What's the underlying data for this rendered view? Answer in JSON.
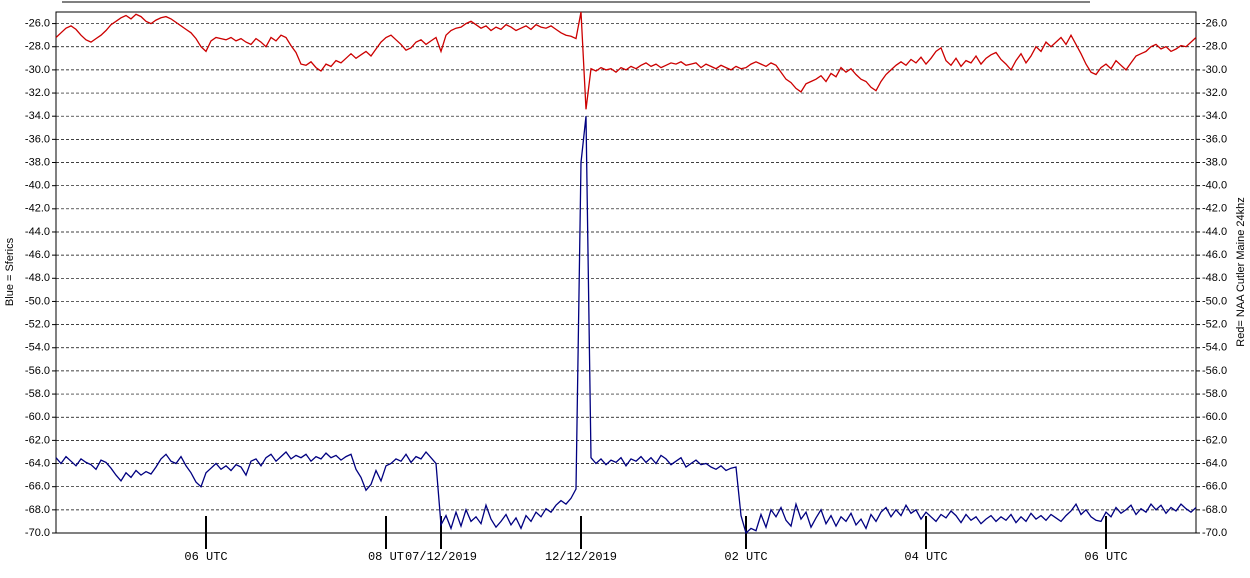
{
  "chart_data": {
    "type": "line",
    "y_label": "Blue = Sferics",
    "y2_label": "Red= NAA Cutler Maine 24khz",
    "xlim": [
      0,
      228
    ],
    "xticks": [
      {
        "value": 30,
        "label": "06 UTC"
      },
      {
        "value": 66,
        "label": "08 UT"
      },
      {
        "value": 77,
        "label": "07/12/2019"
      },
      {
        "value": 105,
        "label": "12/12/2019"
      },
      {
        "value": 138,
        "label": "02 UTC"
      },
      {
        "value": 174,
        "label": "04 UTC"
      },
      {
        "value": 210,
        "label": "06 UTC"
      }
    ],
    "ylim": [
      -70,
      -25
    ],
    "y2lim": [
      -70,
      -25
    ],
    "grid": true,
    "yticks": [
      {
        "value": -26,
        "label": "-26.0"
      },
      {
        "value": -28,
        "label": "-28.0"
      },
      {
        "value": -30,
        "label": "-30.0"
      },
      {
        "value": -32,
        "label": "-32.0"
      },
      {
        "value": -34,
        "label": "-34.0"
      },
      {
        "value": -36,
        "label": "-36.0"
      },
      {
        "value": -38,
        "label": "-38.0"
      },
      {
        "value": -40,
        "label": "-40.0"
      },
      {
        "value": -42,
        "label": "-42.0"
      },
      {
        "value": -44,
        "label": "-44.0"
      },
      {
        "value": -46,
        "label": "-46.0"
      },
      {
        "value": -48,
        "label": "-48.0"
      },
      {
        "value": -50,
        "label": "-50.0"
      },
      {
        "value": -52,
        "label": "-52.0"
      },
      {
        "value": -54,
        "label": "-54.0"
      },
      {
        "value": -56,
        "label": "-56.0"
      },
      {
        "value": -58,
        "label": "-58.0"
      },
      {
        "value": -60,
        "label": "-60.0"
      },
      {
        "value": -62,
        "label": "-62.0"
      },
      {
        "value": -64,
        "label": "-64.0"
      },
      {
        "value": -66,
        "label": "-66.0"
      },
      {
        "value": -68,
        "label": "-68.0"
      },
      {
        "value": -70,
        "label": "-70.0"
      }
    ],
    "y2ticks": [
      {
        "value": -26,
        "label": "-26.0"
      },
      {
        "value": -28,
        "label": "-28.0"
      },
      {
        "value": -30,
        "label": "-30.0"
      },
      {
        "value": -32,
        "label": "-32.0"
      },
      {
        "value": -34,
        "label": "-34.0"
      },
      {
        "value": -36,
        "label": "-36.0"
      },
      {
        "value": -38,
        "label": "-38.0"
      },
      {
        "value": -40,
        "label": "-40.0"
      },
      {
        "value": -42,
        "label": "-42.0"
      },
      {
        "value": -44,
        "label": "-44.0"
      },
      {
        "value": -46,
        "label": "-46.0"
      },
      {
        "value": -48,
        "label": "-48.0"
      },
      {
        "value": -50,
        "label": "-50.0"
      },
      {
        "value": -52,
        "label": "-52.0"
      },
      {
        "value": -54,
        "label": "-54.0"
      },
      {
        "value": -56,
        "label": "-56.0"
      },
      {
        "value": -58,
        "label": "-58.0"
      },
      {
        "value": -60,
        "label": "-60.0"
      },
      {
        "value": -62,
        "label": "-62.0"
      },
      {
        "value": -64,
        "label": "-64.0"
      },
      {
        "value": -66,
        "label": "-66.0"
      },
      {
        "value": -68,
        "label": "-68.0"
      },
      {
        "value": -70,
        "label": "-70.0"
      }
    ],
    "series": [
      {
        "color": "#cc0000",
        "axis": "y2",
        "values": [
          -27.2,
          -26.8,
          -26.4,
          -26.2,
          -26.5,
          -27.0,
          -27.4,
          -27.6,
          -27.3,
          -27.0,
          -26.6,
          -26.1,
          -25.8,
          -25.5,
          -25.3,
          -25.6,
          -25.2,
          -25.4,
          -25.8,
          -26.0,
          -25.7,
          -25.5,
          -25.4,
          -25.6,
          -25.9,
          -26.2,
          -26.5,
          -26.8,
          -27.3,
          -28.0,
          -28.4,
          -27.5,
          -27.2,
          -27.3,
          -27.4,
          -27.2,
          -27.5,
          -27.3,
          -27.6,
          -27.8,
          -27.3,
          -27.6,
          -28.0,
          -27.2,
          -27.5,
          -27.0,
          -27.2,
          -27.9,
          -28.5,
          -29.5,
          -29.6,
          -29.3,
          -29.8,
          -30.1,
          -29.5,
          -29.7,
          -29.2,
          -29.4,
          -29.0,
          -28.6,
          -29.0,
          -28.7,
          -28.4,
          -28.8,
          -28.2,
          -27.6,
          -27.2,
          -27.0,
          -27.4,
          -27.8,
          -28.3,
          -28.1,
          -27.6,
          -27.4,
          -27.8,
          -27.5,
          -27.2,
          -28.4,
          -27.0,
          -26.6,
          -26.4,
          -26.3,
          -26.0,
          -25.8,
          -26.1,
          -26.4,
          -26.2,
          -26.6,
          -26.3,
          -26.5,
          -26.1,
          -26.3,
          -26.6,
          -26.4,
          -26.2,
          -26.5,
          -26.1,
          -26.3,
          -26.4,
          -26.2,
          -26.5,
          -26.8,
          -27.0,
          -27.1,
          -27.3,
          -25.0,
          -33.4,
          -29.9,
          -30.1,
          -29.8,
          -30.0,
          -29.9,
          -30.2,
          -29.8,
          -30.0,
          -29.7,
          -29.9,
          -29.6,
          -29.4,
          -29.7,
          -29.5,
          -29.8,
          -29.6,
          -29.4,
          -29.5,
          -29.3,
          -29.6,
          -29.5,
          -29.4,
          -29.8,
          -29.5,
          -29.7,
          -29.9,
          -29.6,
          -29.8,
          -30.0,
          -29.7,
          -29.9,
          -29.8,
          -29.5,
          -29.3,
          -29.5,
          -29.7,
          -29.4,
          -29.6,
          -30.2,
          -30.8,
          -31.1,
          -31.6,
          -31.9,
          -31.2,
          -31.0,
          -30.8,
          -30.5,
          -31.0,
          -30.3,
          -30.6,
          -29.8,
          -30.2,
          -29.9,
          -30.4,
          -30.8,
          -31.0,
          -31.5,
          -31.8,
          -31.0,
          -30.4,
          -30.0,
          -29.6,
          -29.3,
          -29.6,
          -29.1,
          -29.4,
          -28.9,
          -29.5,
          -29.0,
          -28.4,
          -28.1,
          -29.2,
          -29.6,
          -29.0,
          -29.7,
          -29.2,
          -29.4,
          -28.8,
          -29.5,
          -29.0,
          -28.7,
          -28.5,
          -29.1,
          -29.5,
          -30.0,
          -29.2,
          -28.6,
          -29.4,
          -28.8,
          -28.0,
          -28.4,
          -27.6,
          -28.0,
          -27.6,
          -27.2,
          -27.8,
          -27.0,
          -27.8,
          -28.6,
          -29.5,
          -30.2,
          -30.4,
          -29.8,
          -29.5,
          -29.9,
          -29.2,
          -29.6,
          -30.0,
          -29.4,
          -28.8,
          -28.6,
          -28.4,
          -28.0,
          -27.8,
          -28.2,
          -28.0,
          -28.4,
          -28.2,
          -27.9,
          -28.0,
          -27.6,
          -27.2
        ]
      },
      {
        "color": "#000080",
        "values": [
          -63.5,
          -64.0,
          -63.4,
          -63.8,
          -64.2,
          -63.6,
          -63.9,
          -64.1,
          -64.5,
          -63.7,
          -63.9,
          -64.4,
          -65.0,
          -65.5,
          -64.8,
          -65.2,
          -64.6,
          -65.0,
          -64.7,
          -64.9,
          -64.3,
          -63.6,
          -63.2,
          -63.8,
          -64.0,
          -63.4,
          -64.2,
          -64.8,
          -65.6,
          -66.0,
          -64.8,
          -64.4,
          -64.0,
          -64.5,
          -64.2,
          -64.6,
          -64.1,
          -64.3,
          -65.0,
          -63.8,
          -63.6,
          -64.2,
          -63.5,
          -63.2,
          -63.8,
          -63.4,
          -63.0,
          -63.6,
          -63.3,
          -63.5,
          -63.2,
          -63.8,
          -63.4,
          -63.6,
          -63.1,
          -63.5,
          -63.3,
          -63.7,
          -63.4,
          -63.2,
          -64.5,
          -65.2,
          -66.3,
          -65.8,
          -64.6,
          -65.5,
          -64.2,
          -64.0,
          -63.6,
          -63.8,
          -63.2,
          -63.9,
          -63.4,
          -63.6,
          -63.0,
          -63.5,
          -64.0,
          -69.3,
          -68.5,
          -69.6,
          -68.2,
          -69.4,
          -68.0,
          -69.0,
          -68.6,
          -69.2,
          -67.6,
          -68.8,
          -69.5,
          -69.0,
          -68.4,
          -69.3,
          -68.7,
          -69.6,
          -68.5,
          -69.0,
          -68.2,
          -68.6,
          -67.9,
          -68.2,
          -67.6,
          -67.2,
          -67.5,
          -67.0,
          -66.2,
          -38.0,
          -34.0,
          -63.5,
          -64.0,
          -63.6,
          -64.1,
          -63.7,
          -63.9,
          -63.5,
          -64.2,
          -63.6,
          -63.8,
          -63.4,
          -63.9,
          -63.5,
          -64.0,
          -63.3,
          -63.6,
          -64.1,
          -63.8,
          -63.5,
          -64.3,
          -64.0,
          -63.7,
          -64.1,
          -64.0,
          -64.3,
          -64.5,
          -64.2,
          -64.6,
          -64.4,
          -64.3,
          -68.5,
          -70.0,
          -69.6,
          -69.8,
          -68.4,
          -69.5,
          -68.0,
          -68.6,
          -67.8,
          -68.9,
          -69.4,
          -67.5,
          -68.8,
          -68.2,
          -69.5,
          -68.7,
          -68.0,
          -69.2,
          -68.5,
          -69.4,
          -68.6,
          -69.0,
          -68.3,
          -69.3,
          -68.8,
          -69.6,
          -68.4,
          -69.0,
          -68.2,
          -67.8,
          -68.6,
          -68.0,
          -68.5,
          -67.6,
          -68.3,
          -68.0,
          -68.8,
          -68.2,
          -68.6,
          -69.0,
          -68.4,
          -68.7,
          -68.1,
          -68.5,
          -69.1,
          -68.4,
          -68.9,
          -68.6,
          -69.2,
          -68.8,
          -68.5,
          -69.0,
          -68.6,
          -68.9,
          -68.4,
          -69.1,
          -68.6,
          -69.0,
          -68.3,
          -68.8,
          -68.5,
          -68.9,
          -68.4,
          -68.7,
          -69.0,
          -68.5,
          -68.1,
          -67.5,
          -68.4,
          -68.0,
          -68.6,
          -68.9,
          -69.0,
          -68.2,
          -68.6,
          -67.8,
          -68.3,
          -68.0,
          -67.6,
          -68.4,
          -67.9,
          -68.2,
          -67.5,
          -68.0,
          -67.6,
          -68.3,
          -67.8,
          -68.1,
          -67.5,
          -67.9,
          -68.2,
          -67.8
        ]
      }
    ]
  }
}
